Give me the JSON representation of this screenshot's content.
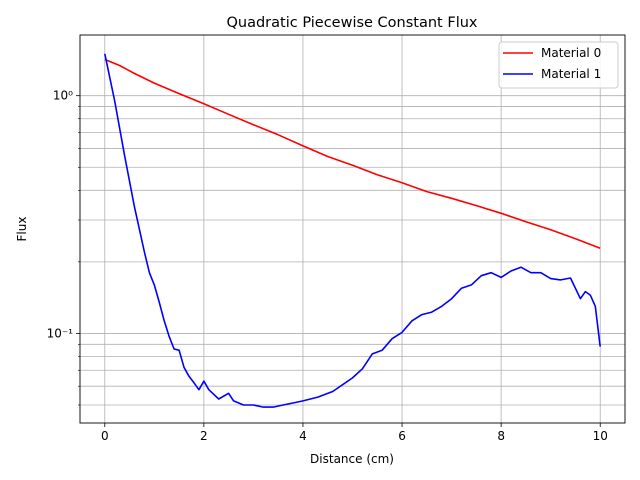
{
  "chart_data": {
    "type": "line",
    "title": "Quadratic Piecewise Constant Flux",
    "xlabel": "Distance (cm)",
    "ylabel": "Flux",
    "yscale": "log",
    "xlim": [
      -0.5,
      10.5
    ],
    "ylim": [
      0.042,
      1.8
    ],
    "x_ticks": [
      0,
      2,
      4,
      6,
      8,
      10
    ],
    "x_tick_labels": [
      "0",
      "2",
      "4",
      "6",
      "8",
      "10"
    ],
    "y_major_ticks": [
      0.1,
      1.0
    ],
    "y_major_tick_labels": [
      "10⁻¹",
      "10⁰"
    ],
    "grid": true,
    "legend_position": "upper right",
    "series": [
      {
        "name": "Material 0",
        "color": "#ff0000",
        "x": [
          0,
          0.3,
          0.6,
          1.0,
          1.5,
          2.0,
          2.5,
          3.0,
          3.5,
          4.0,
          4.5,
          5.0,
          5.5,
          6.0,
          6.5,
          7.0,
          7.5,
          8.0,
          8.5,
          9.0,
          9.5,
          10.0
        ],
        "y": [
          1.42,
          1.34,
          1.24,
          1.13,
          1.02,
          0.925,
          0.835,
          0.755,
          0.685,
          0.615,
          0.555,
          0.51,
          0.465,
          0.43,
          0.395,
          0.37,
          0.345,
          0.32,
          0.295,
          0.273,
          0.25,
          0.228
        ]
      },
      {
        "name": "Material 1",
        "color": "#0000ff",
        "x": [
          0,
          0.2,
          0.4,
          0.6,
          0.8,
          0.9,
          1.0,
          1.1,
          1.2,
          1.3,
          1.4,
          1.5,
          1.6,
          1.7,
          1.8,
          1.9,
          2.0,
          2.1,
          2.3,
          2.5,
          2.6,
          2.8,
          3.0,
          3.2,
          3.4,
          3.6,
          3.8,
          4.0,
          4.3,
          4.6,
          5.0,
          5.2,
          5.4,
          5.6,
          5.8,
          6.0,
          6.2,
          6.4,
          6.6,
          6.8,
          7.0,
          7.2,
          7.4,
          7.6,
          7.8,
          8.0,
          8.2,
          8.4,
          8.6,
          8.8,
          9.0,
          9.2,
          9.4,
          9.6,
          9.7,
          9.8,
          9.9,
          10.0
        ],
        "y": [
          1.5,
          0.95,
          0.56,
          0.34,
          0.22,
          0.18,
          0.16,
          0.135,
          0.113,
          0.097,
          0.086,
          0.085,
          0.072,
          0.066,
          0.062,
          0.058,
          0.063,
          0.058,
          0.053,
          0.056,
          0.052,
          0.05,
          0.05,
          0.049,
          0.049,
          0.05,
          0.051,
          0.052,
          0.054,
          0.057,
          0.065,
          0.071,
          0.082,
          0.085,
          0.095,
          0.101,
          0.113,
          0.12,
          0.123,
          0.13,
          0.14,
          0.155,
          0.16,
          0.175,
          0.18,
          0.172,
          0.183,
          0.19,
          0.18,
          0.18,
          0.17,
          0.168,
          0.171,
          0.14,
          0.15,
          0.145,
          0.13,
          0.088
        ]
      }
    ]
  }
}
